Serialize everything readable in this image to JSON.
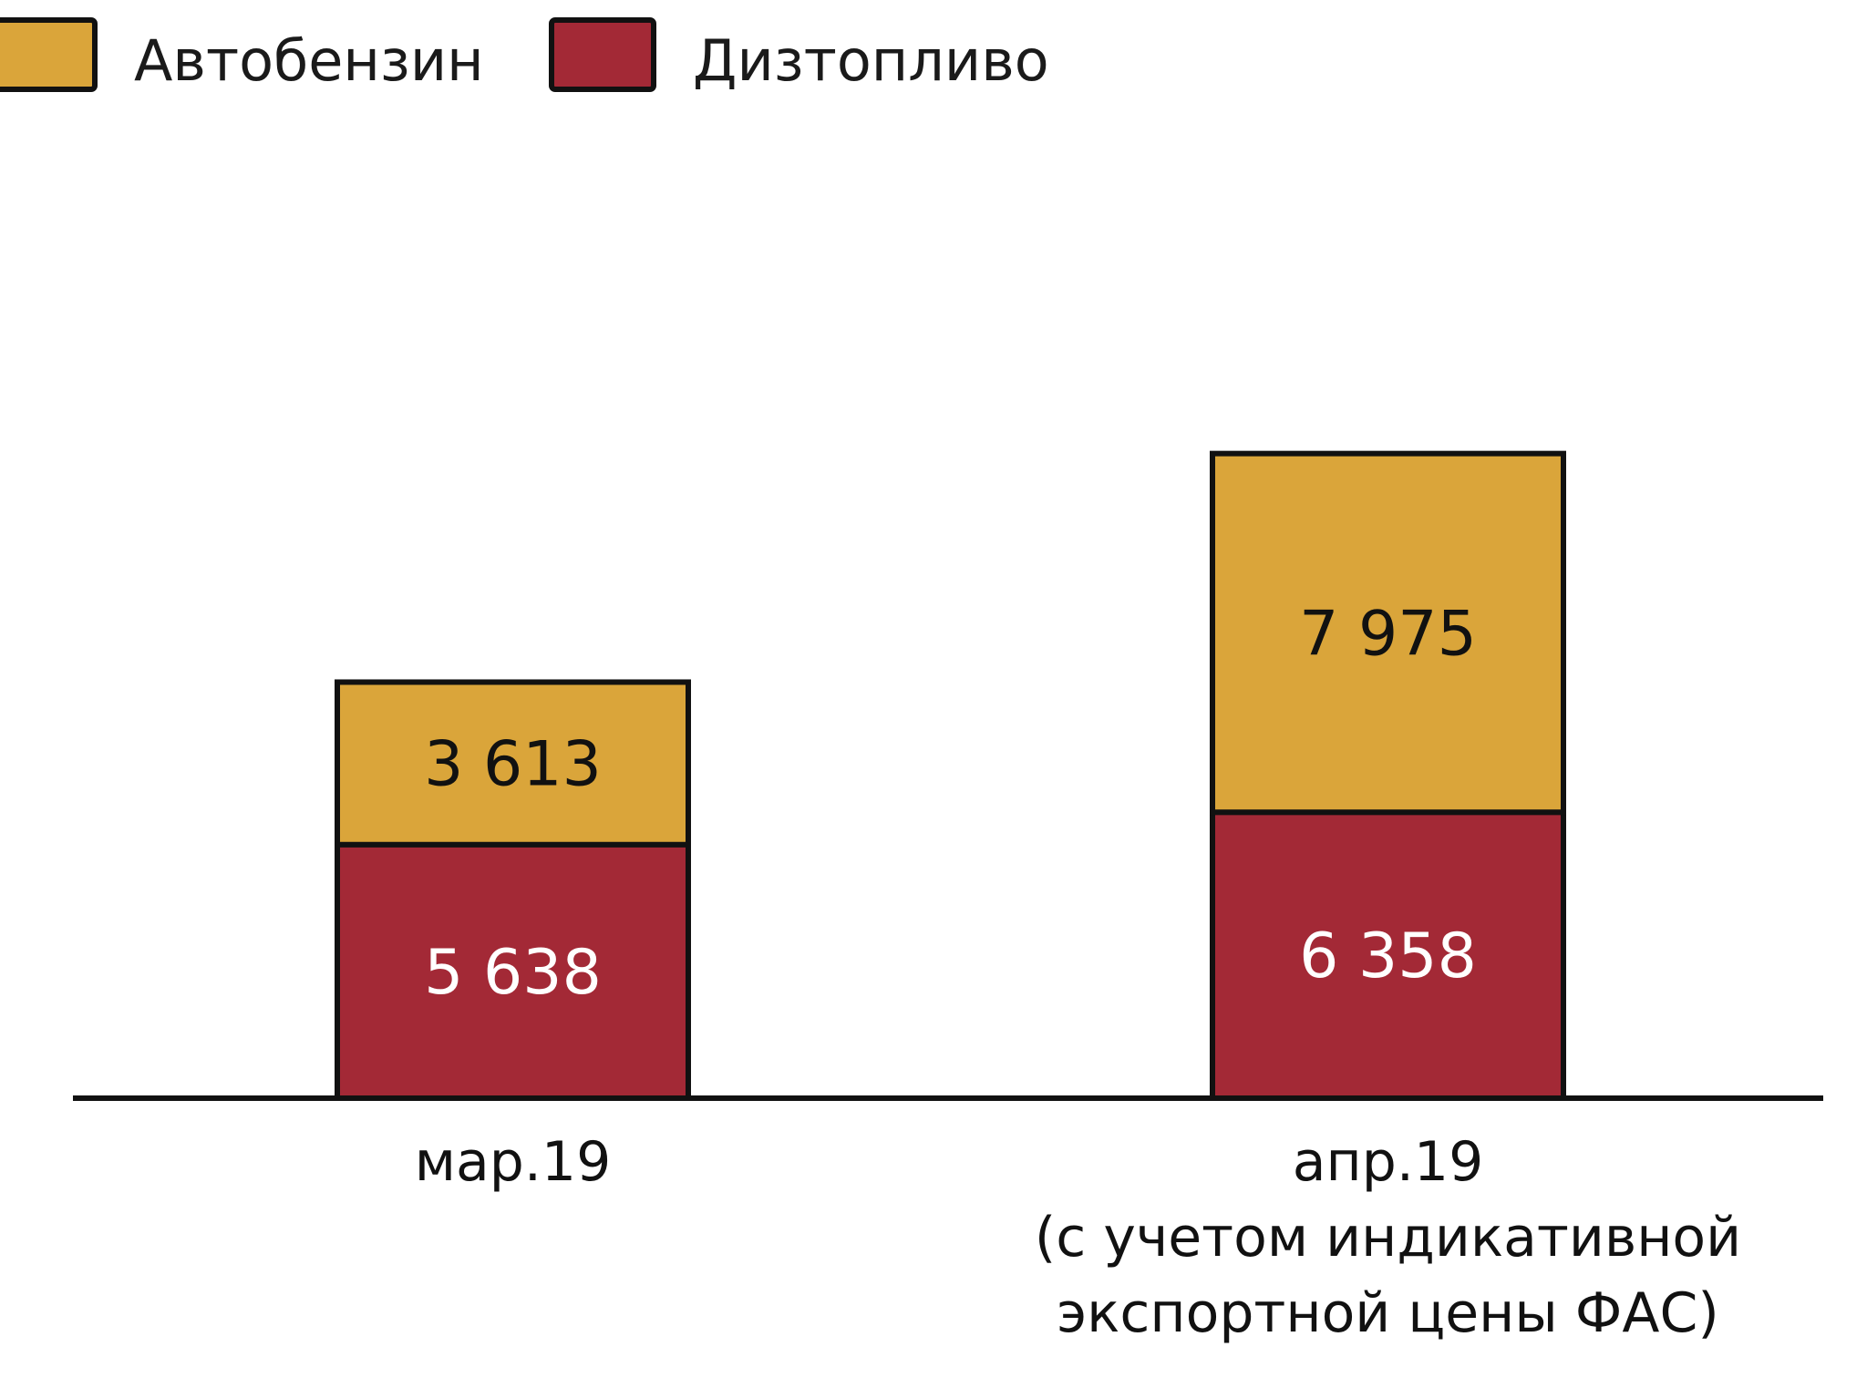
{
  "chart_data": {
    "type": "bar",
    "stacked": true,
    "categories": [
      [
        "мар.19"
      ],
      [
        "апр.19",
        "(с учетом индикативной",
        "экспортной цены ФАС)"
      ]
    ],
    "series": [
      {
        "name": "Дизтопливо",
        "color": "#A32936",
        "label_color": "#ffffff",
        "values": [
          5638,
          6358
        ],
        "value_labels": [
          "5 638",
          "6 358"
        ]
      },
      {
        "name": "Автобензин",
        "color": "#DAA53A",
        "label_color": "#111111",
        "values": [
          3613,
          7975
        ],
        "value_labels": [
          "3 613",
          "7 975"
        ]
      }
    ],
    "legend_order": [
      "Автобензин",
      "Дизтопливо"
    ],
    "legend_position": "top-left",
    "y_axis_visible": false,
    "grid": false,
    "ylim": [
      0,
      14333
    ]
  }
}
